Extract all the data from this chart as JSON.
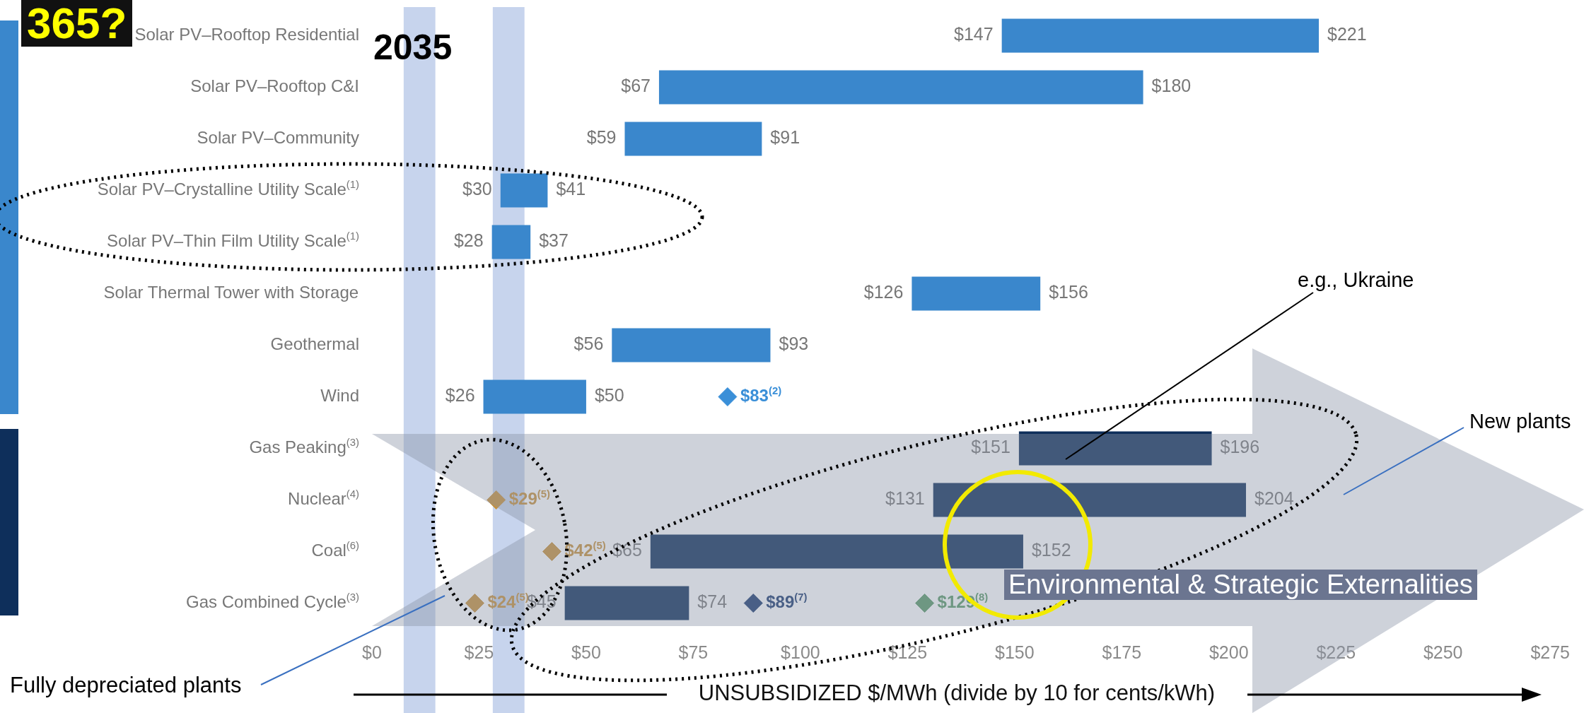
{
  "chart_data": {
    "type": "bar",
    "orientation": "horizontal",
    "categories": [
      "Solar PV–Rooftop Residential",
      "Solar PV–Rooftop C&I",
      "Solar PV–Community",
      "Solar PV–Crystalline Utility Scale$^{(1)}$",
      "Solar PV–Thin Film Utility Scale$^{(1)}$",
      "Solar Thermal Tower with Storage",
      "Geothermal",
      "Wind",
      "Gas Peaking$^{(3)}$",
      "Nuclear$^{(4)}$",
      "Coal$^{(6)}$",
      "Gas Combined Cycle$^{(3)}$"
    ],
    "series": [
      {
        "base": [
          147,
          67,
          59,
          30,
          28,
          126,
          56,
          26,
          151,
          131,
          65,
          45
        ],
        "values": [
          74,
          113,
          32,
          11,
          9,
          30,
          37,
          24,
          45,
          73,
          87,
          29
        ],
        "colors": [
          "#3a87cc",
          "#3a87cc",
          "#3a87cc",
          "#3a87cc",
          "#3a87cc",
          "#3a87cc",
          "#3a87cc",
          "#3a87cc",
          "#0e2f5b",
          "#0e2f5b",
          "#0e2f5b",
          "#0e2f5b"
        ]
      },
      {
        "type": "scatter",
        "color": "#3a8fd8",
        "x": [
          "Wind"
        ],
        "values": [
          83
        ],
        "value_labels": [
          "$83$^{(2)}$"
        ]
      },
      {
        "type": "scatter",
        "color": "#c8913a",
        "x": [
          "Nuclear$^{(4)}$",
          "Coal$^{(6)}$",
          "Gas Combined Cycle$^{(3)}$"
        ],
        "values": [
          29,
          42,
          24
        ],
        "value_labels": [
          "$29$^{(5)}$",
          "$42$^{(5)}$",
          "$24$^{(5)}$"
        ]
      },
      {
        "type": "scatter",
        "color": "#1a3a6e",
        "x": [
          "Gas Combined Cycle$^{(3)}$"
        ],
        "values": [
          89
        ],
        "value_labels": [
          "$89$^{(7)}$"
        ]
      },
      {
        "type": "scatter",
        "color": "#5a9a68",
        "x": [
          "Gas Combined Cycle$^{(3)}$"
        ],
        "values": [
          129
        ],
        "value_labels": [
          "$129$^{(8)}$"
        ]
      }
    ],
    "marker": "diamond",
    "xlim": [
      0,
      275
    ],
    "xticks": [
      {
        "value": 0,
        "label": "$0"
      },
      {
        "value": 25,
        "label": "$25"
      },
      {
        "value": 50,
        "label": "$50"
      },
      {
        "value": 75,
        "label": "$75"
      },
      {
        "value": 100,
        "label": "$100"
      },
      {
        "value": 125,
        "label": "$125"
      },
      {
        "value": 150,
        "label": "$150"
      },
      {
        "value": 175,
        "label": "$175"
      },
      {
        "value": 200,
        "label": "$200"
      },
      {
        "value": 225,
        "label": "$225"
      },
      {
        "value": 250,
        "label": "$250"
      },
      {
        "value": 275,
        "label": "$275"
      }
    ],
    "xlabel": "UNSUBSIDIZED  $/MWh (divide by 10 for cents/kWh)",
    "bands": [
      {
        "axis": "x",
        "from": 7.4,
        "to": 14.8,
        "color": "#a9bde3"
      },
      {
        "axis": "x",
        "from": 28.2,
        "to": 35.6,
        "color": "#a9bde3"
      }
    ],
    "grid": false,
    "legend": false,
    "annotations": [
      {
        "text": "$147",
        "x": 147,
        "y": "Solar PV–Rooftop Residential"
      },
      {
        "text": "$221",
        "x": 221,
        "y": "Solar PV–Rooftop Residential"
      },
      {
        "text": "$67",
        "x": 67,
        "y": "Solar PV–Rooftop C&I"
      },
      {
        "text": "$180",
        "x": 180,
        "y": "Solar PV–Rooftop C&I"
      },
      {
        "text": "$59",
        "x": 59,
        "y": "Solar PV–Community"
      },
      {
        "text": "$91",
        "x": 91,
        "y": "Solar PV–Community"
      },
      {
        "text": "$30",
        "x": 30,
        "y": "Solar PV–Crystalline Utility Scale$^{(1)}$"
      },
      {
        "text": "$41",
        "x": 41,
        "y": "Solar PV–Crystalline Utility Scale$^{(1)}$"
      },
      {
        "text": "$28",
        "x": 28,
        "y": "Solar PV–Thin Film Utility Scale$^{(1)}$"
      },
      {
        "text": "$37",
        "x": 37,
        "y": "Solar PV–Thin Film Utility Scale$^{(1)}$"
      },
      {
        "text": "$126",
        "x": 126,
        "y": "Solar Thermal Tower with Storage"
      },
      {
        "text": "$156",
        "x": 156,
        "y": "Solar Thermal Tower with Storage"
      },
      {
        "text": "$56",
        "x": 56,
        "y": "Geothermal"
      },
      {
        "text": "$93",
        "x": 93,
        "y": "Geothermal"
      },
      {
        "text": "$26",
        "x": 26,
        "y": "Wind"
      },
      {
        "text": "$50",
        "x": 50,
        "y": "Wind"
      },
      {
        "text": "$151",
        "x": 151,
        "y": "Gas Peaking$^{(3)}$"
      },
      {
        "text": "$196",
        "x": 196,
        "y": "Gas Peaking$^{(3)}$"
      },
      {
        "text": "$131",
        "x": 131,
        "y": "Nuclear$^{(4)}$"
      },
      {
        "text": "$204",
        "x": 204,
        "y": "Nuclear$^{(4)}$"
      },
      {
        "text": "$65",
        "x": 65,
        "y": "Coal$^{(6)}$"
      },
      {
        "text": "$152",
        "x": 152,
        "y": "Coal$^{(6)}$"
      },
      {
        "text": "$45",
        "x": 45,
        "y": "Gas Combined Cycle$^{(3)}$"
      },
      {
        "text": "$74",
        "x": 74,
        "y": "Gas Combined Cycle$^{(3)}$"
      },
      "365?",
      "2035",
      "Environmental & Strategic Externalities",
      "e.g., Ukraine",
      "New plants",
      "Fully depreciated plants"
    ]
  }
}
